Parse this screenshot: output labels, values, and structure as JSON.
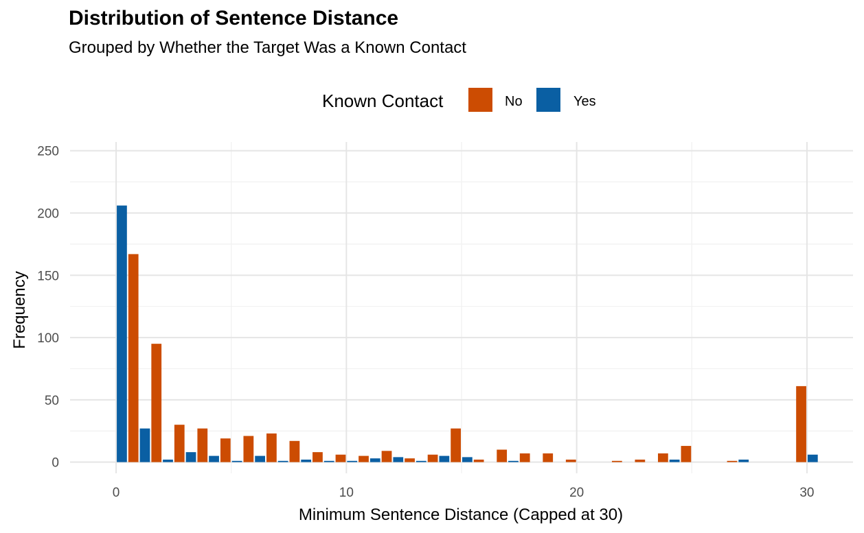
{
  "colors": {
    "no": "#CC4C02",
    "yes": "#0A5FA3",
    "grid_major": "#E5E5E5",
    "grid_minor": "#F1F1F1",
    "tick": "#4D4D4D"
  },
  "chart_data": {
    "type": "bar",
    "title": "Distribution of Sentence Distance",
    "subtitle": "Grouped by Whether the Target Was a Known Contact",
    "xlabel": "Minimum Sentence Distance (Capped at 30)",
    "ylabel": "Frequency",
    "xlim": [
      -2,
      32
    ],
    "ylim": [
      -9,
      257
    ],
    "x_ticks": [
      0,
      10,
      20,
      30
    ],
    "y_ticks": [
      0,
      50,
      100,
      150,
      200,
      250
    ],
    "grid": true,
    "legend": {
      "title": "Known Contact",
      "position": "top"
    },
    "bin_width": 1,
    "series": [
      {
        "name": "No",
        "color": "#CC4C02",
        "x": [
          1,
          2,
          3,
          4,
          5,
          6,
          7,
          8,
          9,
          10,
          11,
          12,
          13,
          14,
          15,
          16,
          17,
          18,
          19,
          20,
          22,
          23,
          24,
          25,
          27,
          30
        ],
        "values": [
          167,
          95,
          30,
          27,
          19,
          21,
          23,
          17,
          8,
          6,
          5,
          9,
          3,
          6,
          27,
          2,
          10,
          7,
          7,
          2,
          1,
          2,
          7,
          13,
          1,
          61
        ]
      },
      {
        "name": "Yes",
        "color": "#0A5FA3",
        "x": [
          0,
          1,
          2,
          3,
          4,
          5,
          6,
          7,
          8,
          9,
          10,
          11,
          12,
          13,
          14,
          15,
          17,
          24,
          27,
          30
        ],
        "values": [
          206,
          27,
          2,
          8,
          5,
          1,
          5,
          1,
          2,
          1,
          1,
          3,
          4,
          1,
          5,
          4,
          1,
          2,
          2,
          6
        ]
      }
    ]
  }
}
